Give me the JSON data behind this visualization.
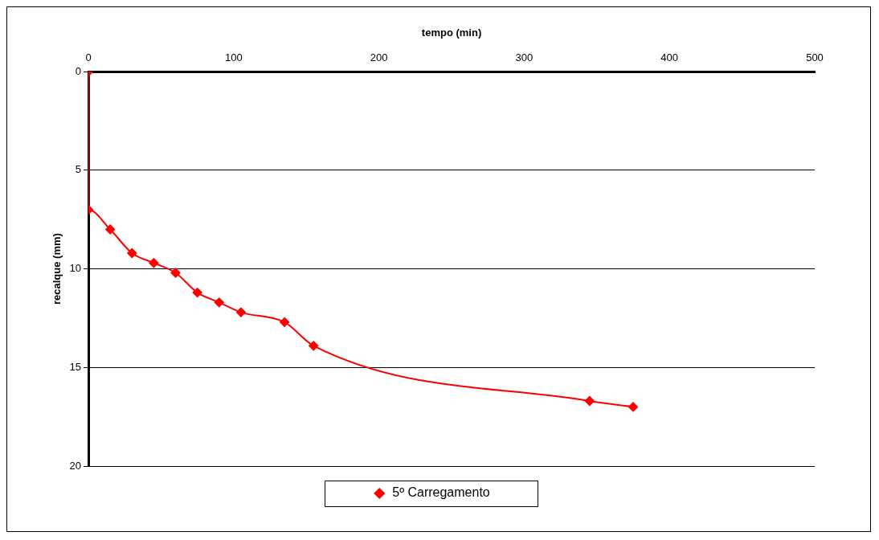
{
  "chart_data": {
    "type": "line",
    "xlabel": "tempo (min)",
    "ylabel": "recalque (mm)",
    "x": [
      0,
      0,
      15,
      30,
      45,
      60,
      75,
      90,
      105,
      135,
      155,
      345,
      375
    ],
    "series": [
      {
        "name": "5º Carregamento",
        "color": "#ff0000",
        "values": [
          0,
          7,
          8,
          9.2,
          9.7,
          10.2,
          11.2,
          11.7,
          12.2,
          12.7,
          13.9,
          16.7,
          17
        ]
      }
    ],
    "xlim": [
      0,
      500
    ],
    "xticks": [
      0,
      100,
      200,
      300,
      400,
      500
    ],
    "ylim": [
      20,
      0
    ],
    "yticks": [
      0,
      5,
      10,
      15,
      20
    ],
    "grid": "y",
    "legend": "bottom",
    "marker": "diamond",
    "line_style": "solid"
  }
}
